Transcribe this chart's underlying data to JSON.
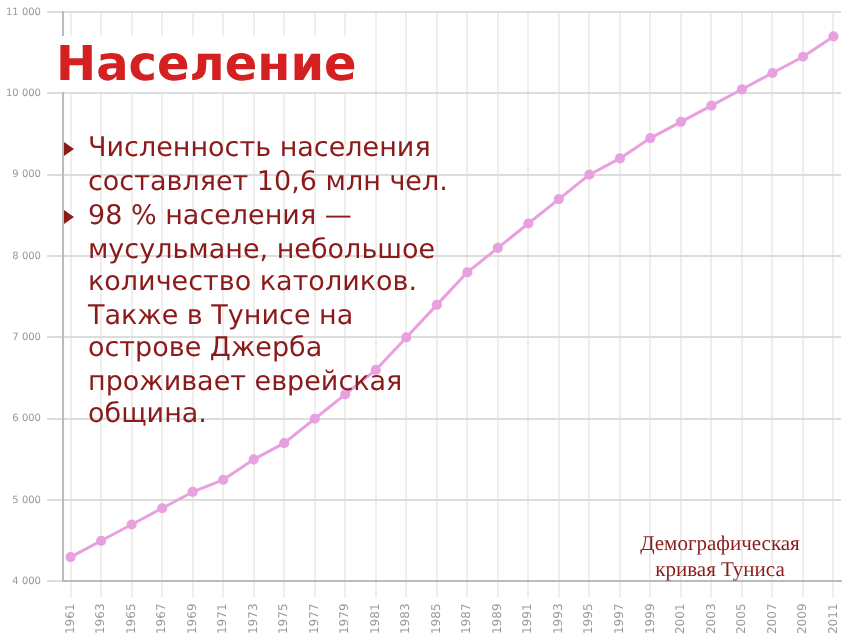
{
  "chart_data": {
    "type": "line",
    "title": "Население",
    "annotations": [
      "Численность населения составляет 10,6 млн чел.",
      "98 % населения — мусульмане, небольшое количество католиков. Также в Тунисе на острове Джерба проживает еврейская община.",
      "Демографическая кривая Туниса"
    ],
    "x": [
      1961,
      1963,
      1965,
      1967,
      1969,
      1971,
      1973,
      1975,
      1977,
      1979,
      1981,
      1983,
      1985,
      1987,
      1989,
      1991,
      1993,
      1995,
      1997,
      1999,
      2001,
      2003,
      2005,
      2007,
      2009,
      2011
    ],
    "series": [
      {
        "color": "#e8a0e0",
        "values": [
          4300,
          4500,
          4700,
          4900,
          5100,
          5250,
          5500,
          5700,
          6000,
          6300,
          6600,
          7000,
          7400,
          7800,
          8100,
          8400,
          8700,
          9000,
          9200,
          9450,
          9650,
          9850,
          10050,
          10250,
          10450,
          10700
        ]
      }
    ],
    "xlim": [
      1960.5,
      2011.5
    ],
    "xticks": [
      1961,
      1963,
      1965,
      1967,
      1969,
      1971,
      1973,
      1975,
      1977,
      1979,
      1981,
      1983,
      1985,
      1987,
      1989,
      1991,
      1993,
      1995,
      1997,
      1999,
      2001,
      2003,
      2005,
      2007,
      2009,
      2011
    ],
    "ylim": [
      4000,
      11000
    ],
    "yticks": [
      {
        "value": 4000,
        "label": "4 000"
      },
      {
        "value": 5000,
        "label": "5 000"
      },
      {
        "value": 6000,
        "label": "6 000"
      },
      {
        "value": 7000,
        "label": "7 000"
      },
      {
        "value": 8000,
        "label": "8 000"
      },
      {
        "value": 9000,
        "label": "9 000"
      },
      {
        "value": 10000,
        "label": "10 000"
      },
      {
        "value": 11000,
        "label": "11 000"
      }
    ],
    "grid": true,
    "marker": "circle",
    "line_style": "solid",
    "legend": false
  }
}
